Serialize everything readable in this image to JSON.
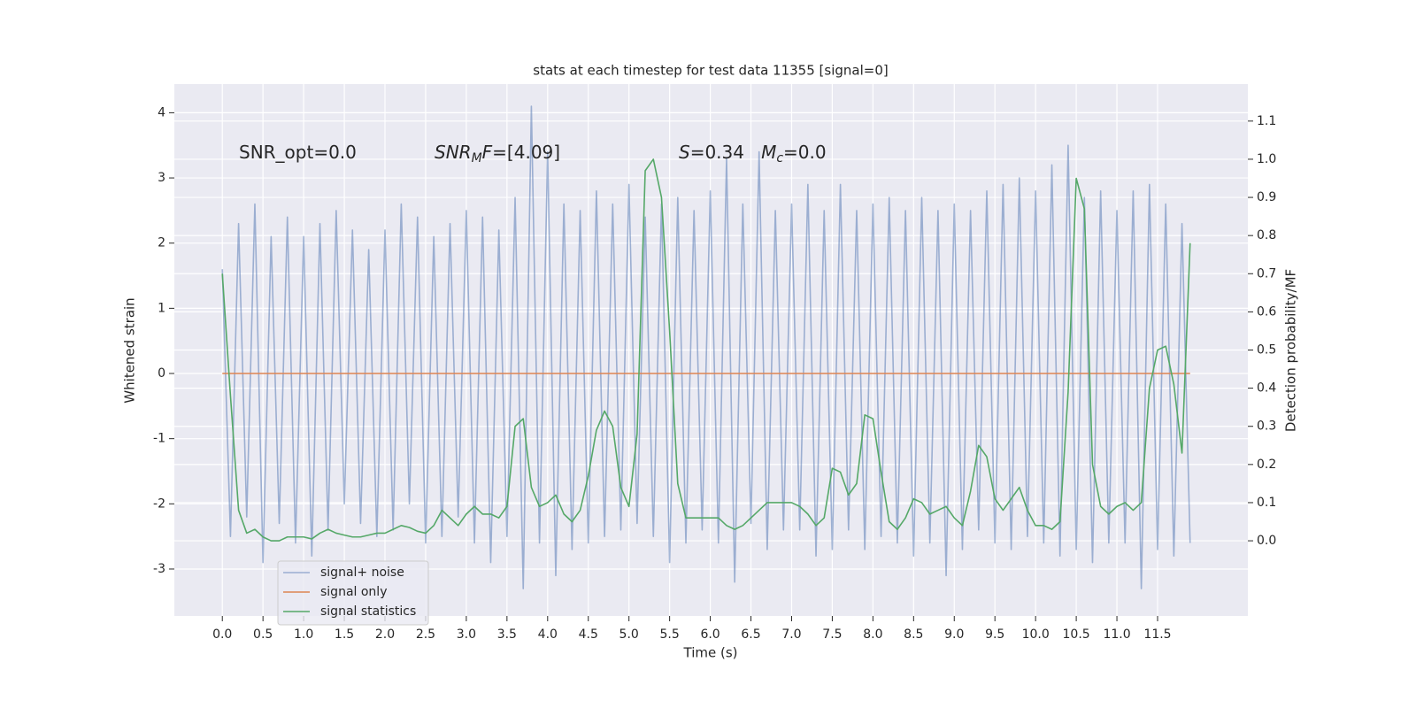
{
  "chart_data": {
    "type": "line",
    "title": "stats at each timestep for test data 11355 [signal=0]",
    "xlabel": "Time (s)",
    "ylabel": "Whitened strain",
    "y2label": "Detection probability/MF",
    "grid": true,
    "legend": "lower left",
    "annotations": [
      {
        "parts": [
          {
            "text": "SNR_opt=0.0"
          }
        ]
      },
      {
        "parts": [
          {
            "text": "SNR",
            "italic": true
          },
          {
            "text": "M",
            "italic": true,
            "sub": true
          },
          {
            "text": "F",
            "italic": true
          },
          {
            "text": "=[4.09]"
          }
        ]
      },
      {
        "parts": [
          {
            "text": "S",
            "italic": true
          },
          {
            "text": "=0.34   "
          },
          {
            "text": "M",
            "italic": true
          },
          {
            "text": "c",
            "italic": true,
            "sub": true
          },
          {
            "text": "=0.0"
          }
        ]
      }
    ],
    "x": [
      0,
      0.1,
      0.2,
      0.3,
      0.4,
      0.5,
      0.6,
      0.7,
      0.8,
      0.9,
      1,
      1.1,
      1.2,
      1.3,
      1.4,
      1.5,
      1.6,
      1.7,
      1.8,
      1.9,
      2,
      2.1,
      2.2,
      2.3,
      2.4,
      2.5,
      2.6,
      2.7,
      2.8,
      2.9,
      3,
      3.1,
      3.2,
      3.3,
      3.4,
      3.5,
      3.6,
      3.7,
      3.8,
      3.9,
      4,
      4.1,
      4.2,
      4.3,
      4.4,
      4.5,
      4.6,
      4.7,
      4.8,
      4.9,
      5,
      5.1,
      5.2,
      5.3,
      5.4,
      5.5,
      5.6,
      5.7,
      5.8,
      5.9,
      6,
      6.1,
      6.2,
      6.3,
      6.4,
      6.5,
      6.6,
      6.7,
      6.8,
      6.9,
      7,
      7.1,
      7.2,
      7.3,
      7.4,
      7.5,
      7.6,
      7.7,
      7.8,
      7.9,
      8,
      8.1,
      8.2,
      8.3,
      8.4,
      8.5,
      8.6,
      8.7,
      8.8,
      8.9,
      9,
      9.1,
      9.2,
      9.3,
      9.4,
      9.5,
      9.6,
      9.7,
      9.8,
      9.9,
      10,
      10.1,
      10.2,
      10.3,
      10.4,
      10.5,
      10.6,
      10.7,
      10.8,
      10.9,
      11,
      11.1,
      11.2,
      11.3,
      11.4,
      11.5,
      11.6,
      11.7,
      11.8,
      11.9
    ],
    "series": [
      {
        "name": "signal+ noise",
        "color": "#4c72b0",
        "opacity": 0.5,
        "axis": "y",
        "values": [
          1.6,
          -2.5,
          2.3,
          -2.2,
          2.6,
          -2.9,
          2.1,
          -2.3,
          2.4,
          -2.6,
          2.1,
          -2.8,
          2.3,
          -2.4,
          2.5,
          -2.0,
          2.2,
          -2.3,
          1.9,
          -2.5,
          2.2,
          -2.4,
          2.6,
          -2.0,
          2.4,
          -2.6,
          2.1,
          -2.5,
          2.3,
          -2.2,
          2.5,
          -2.6,
          2.4,
          -2.9,
          2.2,
          -2.5,
          2.7,
          -3.3,
          4.1,
          -2.6,
          3.4,
          -3.1,
          2.6,
          -2.7,
          2.5,
          -2.6,
          2.8,
          -2.5,
          2.6,
          -2.4,
          2.9,
          -2.3,
          2.4,
          -2.5,
          2.6,
          -2.9,
          2.7,
          -2.6,
          2.5,
          -2.4,
          2.8,
          -2.6,
          3.3,
          -3.2,
          2.6,
          -2.3,
          3.4,
          -2.7,
          2.5,
          -2.4,
          2.6,
          -2.4,
          2.9,
          -2.8,
          2.5,
          -2.7,
          2.9,
          -2.4,
          2.5,
          -2.7,
          2.6,
          -2.5,
          2.7,
          -2.6,
          2.5,
          -2.8,
          2.7,
          -2.6,
          2.5,
          -3.1,
          2.6,
          -2.7,
          2.5,
          -2.4,
          2.8,
          -2.6,
          2.9,
          -2.7,
          3.0,
          -2.5,
          2.8,
          -2.6,
          3.2,
          -2.8,
          3.5,
          -2.7,
          2.7,
          -2.9,
          2.8,
          -2.6,
          2.5,
          -2.6,
          2.8,
          -3.3,
          2.9,
          -2.7,
          2.6,
          -2.8,
          2.3,
          -2.6
        ]
      },
      {
        "name": "signal only",
        "color": "#dd8452",
        "opacity": 1,
        "axis": "y",
        "values": [
          0,
          0,
          0,
          0,
          0,
          0,
          0,
          0,
          0,
          0,
          0,
          0,
          0,
          0,
          0,
          0,
          0,
          0,
          0,
          0,
          0,
          0,
          0,
          0,
          0,
          0,
          0,
          0,
          0,
          0,
          0,
          0,
          0,
          0,
          0,
          0,
          0,
          0,
          0,
          0,
          0,
          0,
          0,
          0,
          0,
          0,
          0,
          0,
          0,
          0,
          0,
          0,
          0,
          0,
          0,
          0,
          0,
          0,
          0,
          0,
          0,
          0,
          0,
          0,
          0,
          0,
          0,
          0,
          0,
          0,
          0,
          0,
          0,
          0,
          0,
          0,
          0,
          0,
          0,
          0,
          0,
          0,
          0,
          0,
          0,
          0,
          0,
          0,
          0,
          0,
          0,
          0,
          0,
          0,
          0,
          0,
          0,
          0,
          0,
          0,
          0,
          0,
          0,
          0,
          0,
          0,
          0,
          0,
          0,
          0,
          0,
          0,
          0,
          0,
          0,
          0,
          0,
          0,
          0,
          0
        ]
      },
      {
        "name": "signal statistics",
        "color": "#55a868",
        "opacity": 1,
        "axis": "y2",
        "values": [
          0.7,
          0.38,
          0.08,
          0.02,
          0.03,
          0.01,
          0.0,
          0.0,
          0.01,
          0.01,
          0.01,
          0.005,
          0.02,
          0.03,
          0.02,
          0.015,
          0.01,
          0.01,
          0.015,
          0.02,
          0.02,
          0.03,
          0.04,
          0.035,
          0.025,
          0.02,
          0.04,
          0.08,
          0.06,
          0.04,
          0.07,
          0.09,
          0.07,
          0.07,
          0.06,
          0.09,
          0.3,
          0.32,
          0.14,
          0.09,
          0.1,
          0.12,
          0.07,
          0.05,
          0.08,
          0.17,
          0.29,
          0.34,
          0.3,
          0.14,
          0.09,
          0.28,
          0.97,
          1.0,
          0.9,
          0.55,
          0.15,
          0.06,
          0.06,
          0.06,
          0.06,
          0.06,
          0.04,
          0.03,
          0.04,
          0.06,
          0.08,
          0.1,
          0.1,
          0.1,
          0.1,
          0.09,
          0.07,
          0.04,
          0.06,
          0.19,
          0.18,
          0.12,
          0.15,
          0.33,
          0.32,
          0.18,
          0.05,
          0.03,
          0.06,
          0.11,
          0.1,
          0.07,
          0.08,
          0.09,
          0.06,
          0.04,
          0.13,
          0.25,
          0.22,
          0.11,
          0.08,
          0.11,
          0.14,
          0.08,
          0.04,
          0.04,
          0.03,
          0.05,
          0.39,
          0.95,
          0.87,
          0.2,
          0.09,
          0.07,
          0.09,
          0.1,
          0.08,
          0.1,
          0.4,
          0.5,
          0.51,
          0.41,
          0.23,
          0.78
        ]
      }
    ],
    "xlim": [
      -0.59,
      12.61
    ],
    "xticks": [
      {
        "value": 0,
        "label": "0.0"
      },
      {
        "value": 0.5,
        "label": "0.5"
      },
      {
        "value": 1,
        "label": "1.0"
      },
      {
        "value": 1.5,
        "label": "1.5"
      },
      {
        "value": 2,
        "label": "2.0"
      },
      {
        "value": 2.5,
        "label": "2.5"
      },
      {
        "value": 3,
        "label": "3.0"
      },
      {
        "value": 3.5,
        "label": "3.5"
      },
      {
        "value": 4,
        "label": "4.0"
      },
      {
        "value": 4.5,
        "label": "4.5"
      },
      {
        "value": 5,
        "label": "5.0"
      },
      {
        "value": 5.5,
        "label": "5.5"
      },
      {
        "value": 6,
        "label": "6.0"
      },
      {
        "value": 6.5,
        "label": "6.5"
      },
      {
        "value": 7,
        "label": "7.0"
      },
      {
        "value": 7.5,
        "label": "7.5"
      },
      {
        "value": 8,
        "label": "8.0"
      },
      {
        "value": 8.5,
        "label": "8.5"
      },
      {
        "value": 9,
        "label": "9.0"
      },
      {
        "value": 9.5,
        "label": "9.5"
      },
      {
        "value": 10,
        "label": "10.0"
      },
      {
        "value": 10.5,
        "label": "10.5"
      },
      {
        "value": 11,
        "label": "11.0"
      },
      {
        "value": 11.5,
        "label": "11.5"
      }
    ],
    "ylim": [
      -3.72,
      4.44
    ],
    "yticks": [
      -3,
      -2,
      -1,
      0,
      1,
      2,
      3,
      4
    ],
    "y2lim": [
      -0.197,
      1.197
    ],
    "y2ticks": [
      {
        "value": 0,
        "label": "0.0"
      },
      {
        "value": 0.1,
        "label": "0.1"
      },
      {
        "value": 0.2,
        "label": "0.2"
      },
      {
        "value": 0.3,
        "label": "0.3"
      },
      {
        "value": 0.4,
        "label": "0.4"
      },
      {
        "value": 0.5,
        "label": "0.5"
      },
      {
        "value": 0.6,
        "label": "0.6"
      },
      {
        "value": 0.7,
        "label": "0.7"
      },
      {
        "value": 0.8,
        "label": "0.8"
      },
      {
        "value": 0.9,
        "label": "0.9"
      },
      {
        "value": 1,
        "label": "1.0"
      },
      {
        "value": 1.1,
        "label": "1.1"
      }
    ]
  }
}
